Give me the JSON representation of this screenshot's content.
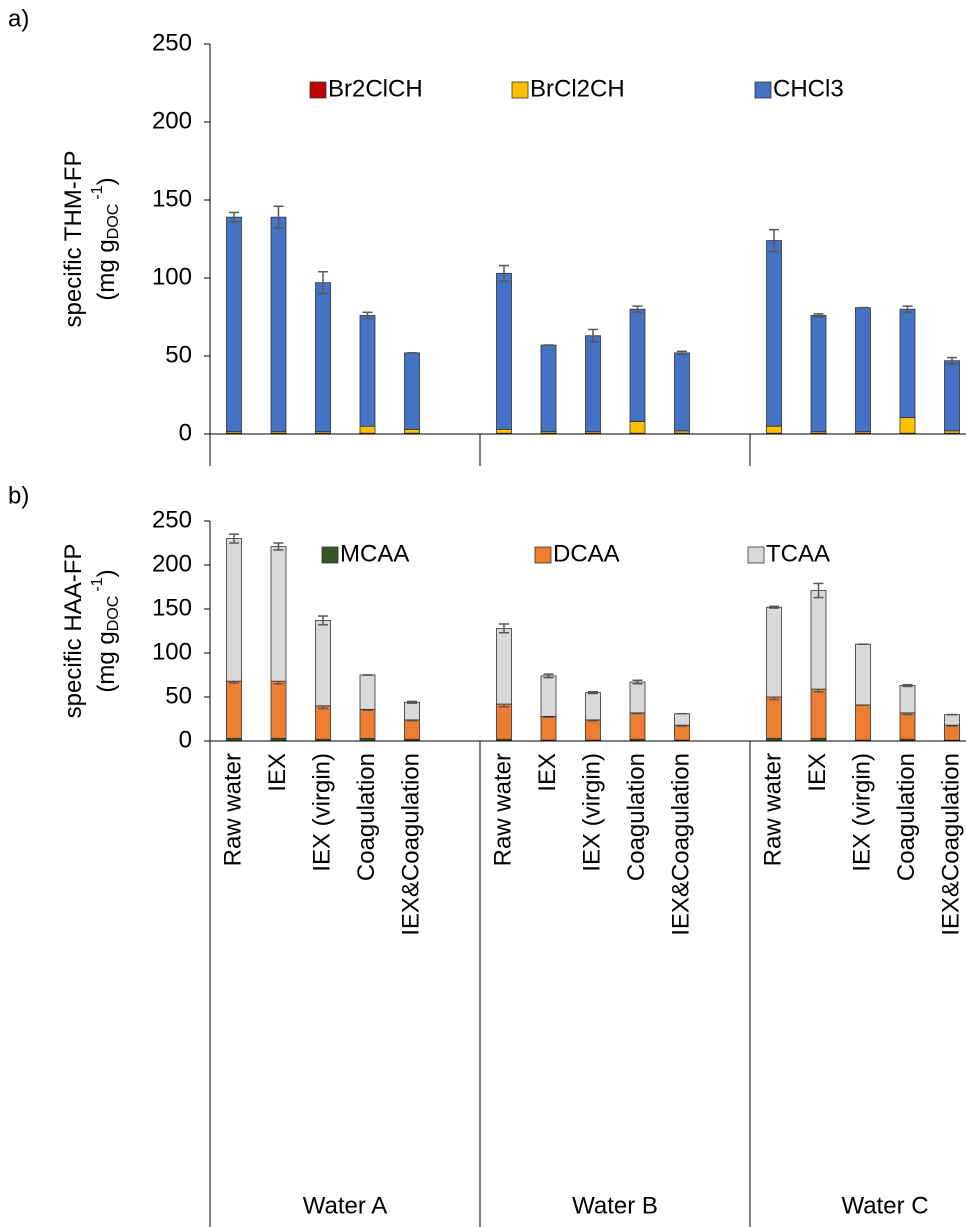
{
  "chart_data": [
    {
      "type": "bar",
      "stacked": true,
      "panel_label": "a)",
      "y_label": [
        "specific THM-FP",
        "(mg g",
        "DOC",
        "-1",
        ")"
      ],
      "ylim": [
        0,
        250
      ],
      "yticks": [
        0,
        50,
        100,
        150,
        200,
        250
      ],
      "series": [
        {
          "name": "Br2ClCH",
          "color": "#c00000",
          "values": [
            0.5,
            0.5,
            0.5,
            0.5,
            0.5,
            0.5,
            0.5,
            0.5,
            0.5,
            0.5,
            0.5,
            0.5,
            0.5,
            0.5,
            0.5
          ]
        },
        {
          "name": "BrCl2CH",
          "color": "#ffc000",
          "values": [
            1,
            1,
            1,
            4.5,
            2.5,
            2.5,
            1,
            1,
            7.5,
            1.5,
            4.5,
            1,
            1,
            10,
            1.5
          ]
        },
        {
          "name": "CHCl3",
          "color": "#4472c4",
          "values": [
            137.5,
            137.5,
            95.5,
            71,
            49,
            100,
            55.5,
            61.5,
            72,
            50,
            119,
            74.5,
            79.5,
            69.5,
            45
          ],
          "errors": [
            3,
            7,
            7,
            2,
            0,
            5,
            0,
            4,
            2,
            1,
            7,
            1,
            0,
            2,
            2
          ]
        }
      ]
    },
    {
      "type": "bar",
      "stacked": true,
      "panel_label": "b)",
      "y_label": [
        "specific HAA-FP",
        "(mg g",
        "DOC",
        "-1",
        ")"
      ],
      "ylim": [
        0,
        250
      ],
      "yticks": [
        0,
        50,
        100,
        150,
        200,
        250
      ],
      "categories": [
        "Raw water",
        "IEX",
        "IEX (virgin)",
        "Coagulation",
        "IEX&Coagulation",
        "Raw water",
        "IEX",
        "IEX (virgin)",
        "Coagulation",
        "IEX&Coagulation",
        "Raw water",
        "IEX",
        "IEX (virgin)",
        "Coagulation",
        "IEX&Coagulation"
      ],
      "groups": [
        "Water A",
        "Water B",
        "Water C"
      ],
      "series": [
        {
          "name": "MCAA",
          "color": "#375623",
          "values": [
            3,
            3,
            2,
            3,
            2,
            2,
            1,
            1,
            2,
            1,
            3,
            3,
            1,
            2,
            1
          ]
        },
        {
          "name": "DCAA",
          "color": "#ed7d31",
          "values": [
            65,
            65,
            38,
            33,
            22,
            40,
            27,
            23,
            30,
            17,
            47,
            56,
            40,
            30,
            17
          ],
          "errors": [
            2,
            3,
            3,
            1,
            1,
            3,
            1,
            1,
            1,
            1,
            3,
            3,
            0,
            2,
            1
          ]
        },
        {
          "name": "TCAA",
          "color": "#d9d9d9",
          "values": [
            162,
            153,
            97,
            39,
            20,
            86,
            46,
            31,
            35,
            13,
            102,
            112,
            69,
            31,
            12
          ],
          "errors": [
            5,
            4,
            5,
            0,
            1,
            5,
            2,
            1,
            2,
            0,
            1,
            8,
            0,
            1,
            0
          ]
        }
      ]
    }
  ]
}
